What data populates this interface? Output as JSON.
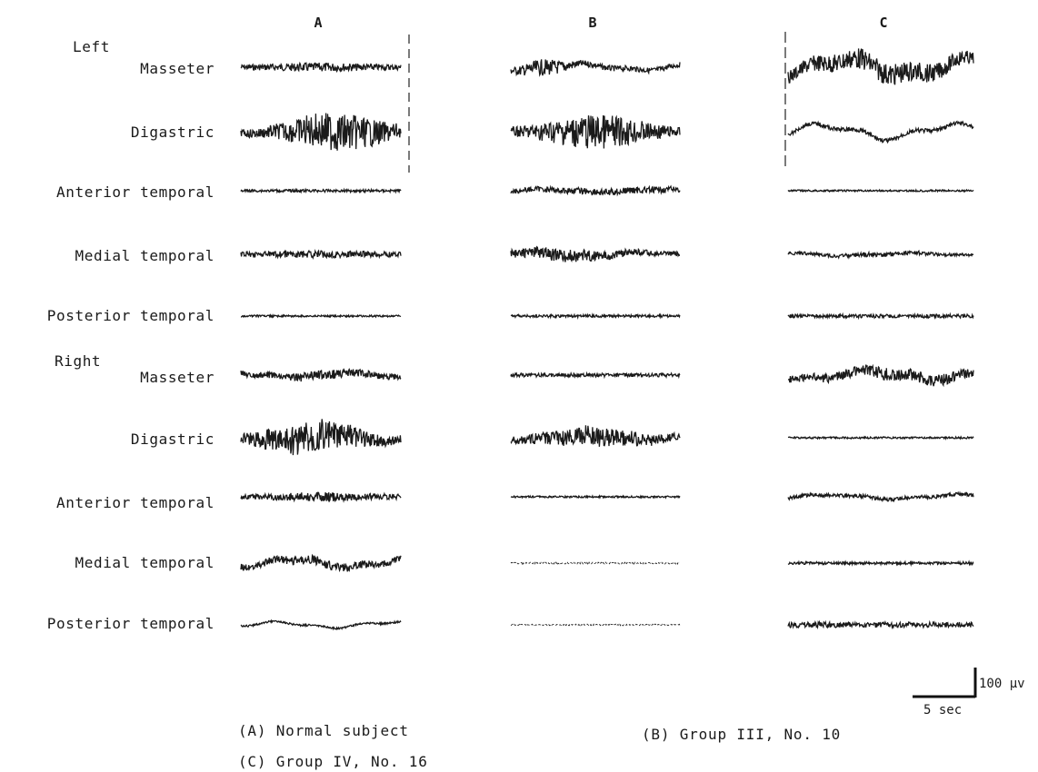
{
  "figure": {
    "columns": [
      "A",
      "B",
      "C"
    ],
    "sides": [
      {
        "label": "Left",
        "muscles": [
          "Masseter",
          "Digastric",
          "Anterior temporal",
          "Medial temporal",
          "Posterior temporal"
        ]
      },
      {
        "label": "Right",
        "muscles": [
          "Masseter",
          "Digastric",
          "Anterior temporal",
          "Medial temporal",
          "Posterior temporal"
        ]
      }
    ],
    "scale_bar": {
      "voltage": "100 µv",
      "time": "5 sec"
    },
    "captions": [
      "(A) Normal subject",
      "(B) Group III, No. 10",
      "(C) Group IV, No. 16"
    ]
  }
}
